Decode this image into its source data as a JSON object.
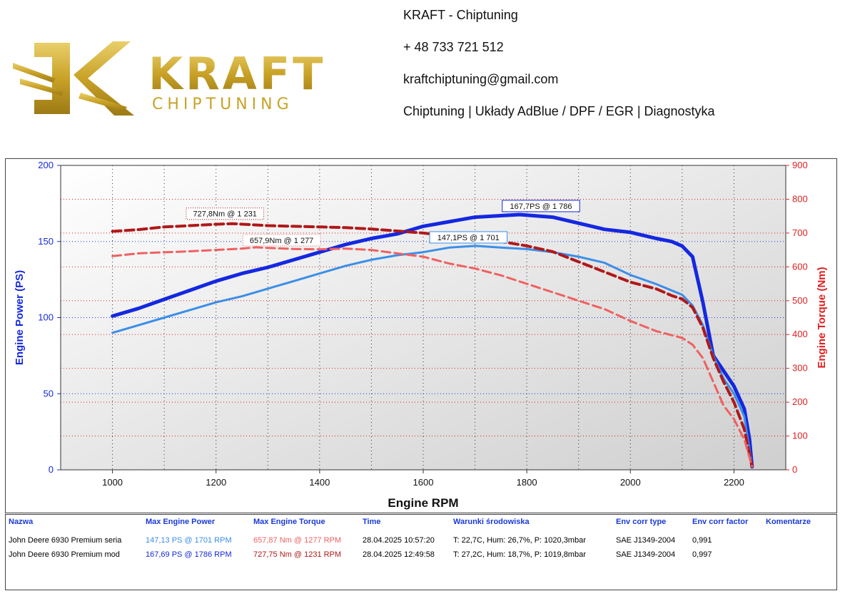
{
  "header": {
    "company": "KRAFT - Chiptuning",
    "phone": "+ 48 733 721 512",
    "email": "kraftchiptuning@gmail.com",
    "services": "Chiptuning | Układy AdBlue / DPF / EGR | Diagnostyka",
    "logo_text": "KRAFT",
    "logo_subtext": "CHIPTUNING"
  },
  "colors": {
    "power_mod": "#1428e0",
    "power_stock": "#3a8ee8",
    "torque_mod": "#b01818",
    "torque_stock": "#f06060",
    "gold": "#c9a227"
  },
  "chart_data": {
    "type": "line",
    "xlabel": "Engine RPM",
    "ylabel_left": "Engine Power (PS)",
    "ylabel_right": "Engine Torque (Nm)",
    "xlim": [
      900,
      2300
    ],
    "ylim_left": [
      0,
      200
    ],
    "ylim_right": [
      0,
      900
    ],
    "x_ticks": [
      "1000",
      "1200",
      "1400",
      "1600",
      "1800",
      "2000",
      "2200"
    ],
    "y_left_ticks": [
      "0",
      "50",
      "100",
      "150",
      "200"
    ],
    "y_right_ticks": [
      "0",
      "100",
      "200",
      "300",
      "400",
      "500",
      "600",
      "700",
      "800",
      "900"
    ],
    "grid": true,
    "series": [
      {
        "name": "John Deere 6930 Premium mod",
        "quantity": "power",
        "axis": "left",
        "style": "solid",
        "x": [
          1000,
          1050,
          1100,
          1150,
          1200,
          1250,
          1300,
          1350,
          1400,
          1450,
          1500,
          1550,
          1600,
          1650,
          1700,
          1750,
          1786,
          1850,
          1900,
          1950,
          2000,
          2050,
          2080,
          2100,
          2120,
          2140,
          2160,
          2180,
          2200,
          2220,
          2230,
          2235
        ],
        "y": [
          101,
          106,
          112,
          118,
          124,
          129,
          133,
          138,
          143,
          148,
          152,
          155,
          160,
          163,
          166,
          167,
          167.7,
          166,
          162,
          158,
          156,
          152,
          150,
          147,
          140,
          110,
          75,
          65,
          55,
          40,
          20,
          2
        ]
      },
      {
        "name": "John Deere 6930 Premium seria",
        "quantity": "power",
        "axis": "left",
        "style": "solid",
        "x": [
          1000,
          1050,
          1100,
          1150,
          1200,
          1250,
          1300,
          1350,
          1400,
          1450,
          1500,
          1550,
          1600,
          1650,
          1701,
          1750,
          1800,
          1850,
          1900,
          1950,
          2000,
          2050,
          2100,
          2120,
          2140,
          2160,
          2180,
          2200,
          2220,
          2235
        ],
        "y": [
          90,
          95,
          100,
          105,
          110,
          114,
          119,
          124,
          129,
          134,
          138,
          141,
          143,
          146,
          147.1,
          146,
          145,
          143,
          140,
          136,
          128,
          122,
          115,
          108,
          95,
          75,
          60,
          50,
          35,
          2
        ]
      },
      {
        "name": "John Deere 6930 Premium mod",
        "quantity": "torque",
        "axis": "right",
        "style": "dashed",
        "x": [
          1000,
          1050,
          1100,
          1150,
          1200,
          1231,
          1300,
          1350,
          1400,
          1450,
          1500,
          1550,
          1600,
          1650,
          1700,
          1750,
          1800,
          1850,
          1900,
          1950,
          2000,
          2050,
          2080,
          2100,
          2120,
          2140,
          2160,
          2180,
          2200,
          2220,
          2235
        ],
        "y": [
          705,
          710,
          718,
          722,
          726,
          727.75,
          722,
          720,
          718,
          716,
          712,
          706,
          700,
          692,
          684,
          675,
          662,
          645,
          615,
          585,
          555,
          535,
          515,
          505,
          480,
          420,
          330,
          260,
          200,
          120,
          10
        ]
      },
      {
        "name": "John Deere 6930 Premium seria",
        "quantity": "torque",
        "axis": "right",
        "style": "dashed",
        "x": [
          1000,
          1050,
          1100,
          1150,
          1200,
          1250,
          1277,
          1300,
          1350,
          1400,
          1450,
          1500,
          1550,
          1600,
          1650,
          1700,
          1750,
          1800,
          1850,
          1900,
          1950,
          2000,
          2050,
          2100,
          2120,
          2140,
          2160,
          2180,
          2200,
          2220,
          2235
        ],
        "y": [
          632,
          640,
          643,
          646,
          650,
          654,
          657.87,
          656,
          653,
          652,
          654,
          650,
          640,
          630,
          610,
          595,
          575,
          550,
          525,
          500,
          475,
          440,
          410,
          390,
          370,
          330,
          260,
          190,
          150,
          90,
          10
        ]
      }
    ],
    "annotations": [
      {
        "text": "727,8Nm @ 1 231",
        "series": 2,
        "x": 1231,
        "y": 727.75
      },
      {
        "text": "657,9Nm @ 1 277",
        "series": 3,
        "x": 1277,
        "y": 657.87
      },
      {
        "text": "167,7PS @ 1 786",
        "series": 0,
        "x": 1786,
        "y": 167.7
      },
      {
        "text": "147,1PS @ 1 701",
        "series": 1,
        "x": 1701,
        "y": 147.1
      }
    ]
  },
  "legend": {
    "headers": [
      "Nazwa",
      "Max Engine Power",
      "Max Engine Torque",
      "Time",
      "Warunki środowiska",
      "Env corr type",
      "Env corr factor",
      "Komentarze"
    ],
    "rows": [
      {
        "name": "John Deere 6930 Premium seria",
        "max_power": "147,13 PS @ 1701 RPM",
        "max_torque": "657,87 Nm @ 1277 RPM",
        "time": "28.04.2025 10:57:20",
        "conditions": "T: 22,7C, Hum: 26,7%, P: 1020,3mbar",
        "corr_type": "SAE J1349-2004",
        "corr_factor": "0,991",
        "comment": ""
      },
      {
        "name": "John Deere 6930 Premium mod",
        "max_power": "167,69 PS @ 1786 RPM",
        "max_torque": "727,75 Nm @ 1231 RPM",
        "time": "28.04.2025 12:49:58",
        "conditions": "T: 27,2C, Hum: 18,7%, P: 1019,8mbar",
        "corr_type": "SAE J1349-2004",
        "corr_factor": "0,997",
        "comment": ""
      }
    ]
  }
}
